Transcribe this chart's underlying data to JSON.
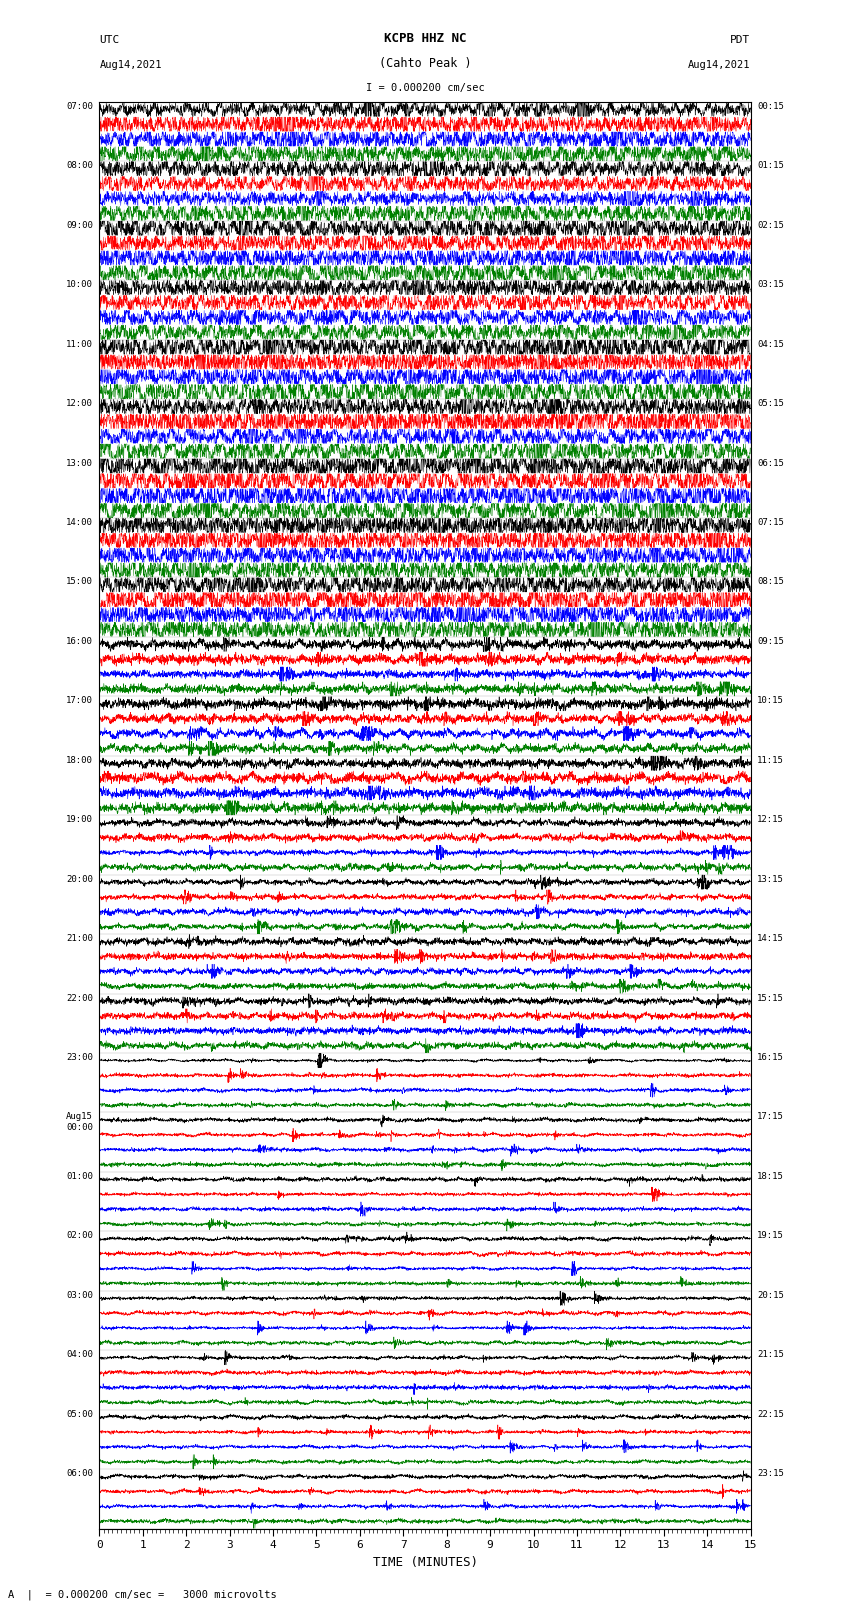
{
  "title_line1": "KCPB HHZ NC",
  "title_line2": "(Cahto Peak )",
  "title_line3": "I = 0.000200 cm/sec",
  "left_label_top": "UTC",
  "left_label_date": "Aug14,2021",
  "right_label_top": "PDT",
  "right_label_date": "Aug14,2021",
  "xlabel": "TIME (MINUTES)",
  "bottom_note": "A  |  = 0.000200 cm/sec =   3000 microvolts",
  "xlim": [
    0,
    15
  ],
  "xticks": [
    0,
    1,
    2,
    3,
    4,
    5,
    6,
    7,
    8,
    9,
    10,
    11,
    12,
    13,
    14,
    15
  ],
  "left_times": [
    "07:00",
    "08:00",
    "09:00",
    "10:00",
    "11:00",
    "12:00",
    "13:00",
    "14:00",
    "15:00",
    "16:00",
    "17:00",
    "18:00",
    "19:00",
    "20:00",
    "21:00",
    "22:00",
    "23:00",
    "Aug15\n00:00",
    "01:00",
    "02:00",
    "03:00",
    "04:00",
    "05:00",
    "06:00"
  ],
  "right_times": [
    "00:15",
    "01:15",
    "02:15",
    "03:15",
    "04:15",
    "05:15",
    "06:15",
    "07:15",
    "08:15",
    "09:15",
    "10:15",
    "11:15",
    "12:15",
    "13:15",
    "14:15",
    "15:15",
    "16:15",
    "17:15",
    "18:15",
    "19:15",
    "20:15",
    "21:15",
    "22:15",
    "23:15"
  ],
  "n_rows": 24,
  "n_subtraces": 4,
  "bg_color": "white",
  "trace_colors": [
    "black",
    "red",
    "blue",
    "green"
  ],
  "figsize": [
    8.5,
    16.13
  ],
  "dpi": 100
}
